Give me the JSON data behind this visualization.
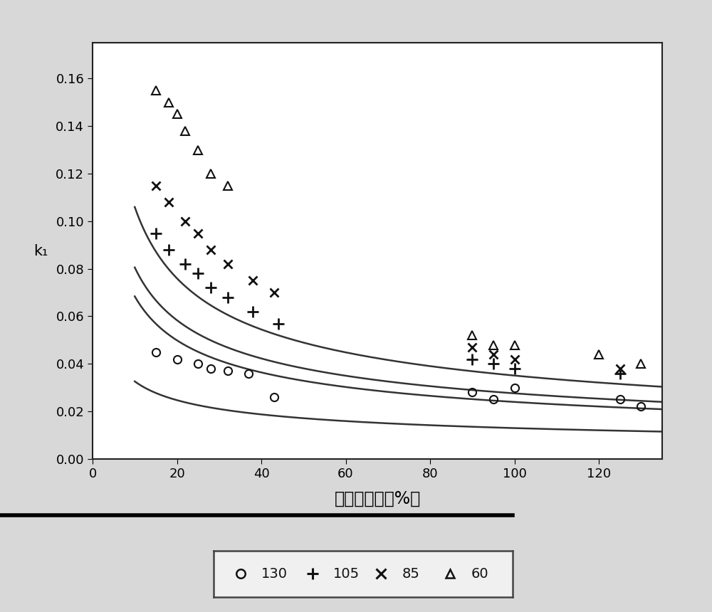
{
  "xlabel": "表观含水率（%）",
  "ylabel": "k₁",
  "xlim": [
    0,
    135
  ],
  "ylim": [
    0.0,
    0.175
  ],
  "xticks": [
    0,
    20,
    40,
    60,
    80,
    100,
    120
  ],
  "yticks": [
    0.0,
    0.02,
    0.04,
    0.06,
    0.08,
    0.1,
    0.12,
    0.14,
    0.16
  ],
  "background_color": "#d8d8d8",
  "plot_bg_color": "#ffffff",
  "series": [
    {
      "label": "130",
      "marker": "o",
      "x": [
        15,
        20,
        25,
        28,
        32,
        37,
        43,
        90,
        95,
        100,
        125,
        130
      ],
      "y": [
        0.045,
        0.042,
        0.04,
        0.038,
        0.037,
        0.036,
        0.026,
        0.028,
        0.025,
        0.03,
        0.025,
        0.022
      ],
      "fit_a": 0.082,
      "fit_b": -0.4
    },
    {
      "label": "105",
      "marker": "+",
      "x": [
        15,
        18,
        22,
        25,
        28,
        32,
        38,
        44,
        90,
        95,
        100,
        125
      ],
      "y": [
        0.095,
        0.088,
        0.082,
        0.078,
        0.072,
        0.068,
        0.062,
        0.057,
        0.042,
        0.04,
        0.038,
        0.036
      ],
      "fit_a": 0.195,
      "fit_b": -0.455
    },
    {
      "label": "85",
      "marker": "x",
      "x": [
        15,
        18,
        22,
        25,
        28,
        32,
        38,
        43,
        90,
        95,
        100,
        125
      ],
      "y": [
        0.115,
        0.108,
        0.1,
        0.095,
        0.088,
        0.082,
        0.075,
        0.07,
        0.047,
        0.044,
        0.042,
        0.038
      ],
      "fit_a": 0.235,
      "fit_b": -0.465
    },
    {
      "label": "60",
      "marker": "^",
      "x": [
        15,
        18,
        20,
        22,
        25,
        28,
        32,
        90,
        95,
        100,
        120,
        130
      ],
      "y": [
        0.155,
        0.15,
        0.145,
        0.138,
        0.13,
        0.12,
        0.115,
        0.052,
        0.048,
        0.048,
        0.044,
        0.04
      ],
      "fit_a": 0.32,
      "fit_b": -0.48
    }
  ]
}
